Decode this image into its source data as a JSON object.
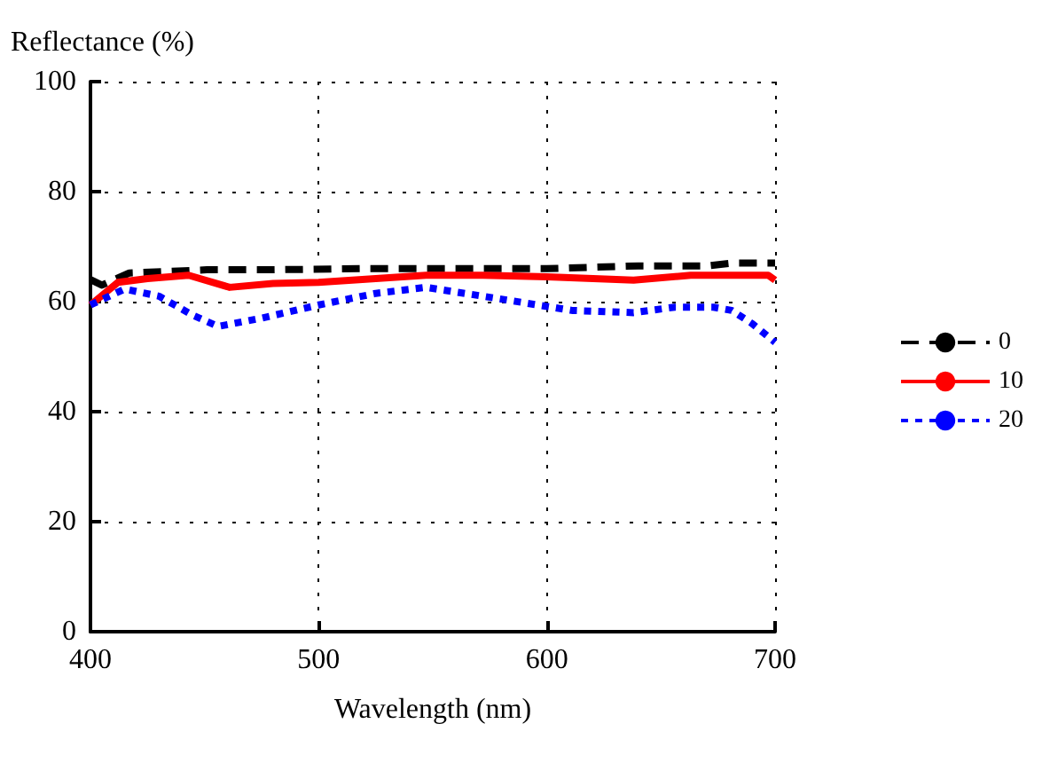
{
  "chart_data": {
    "type": "line",
    "xlabel": "Wavelength (nm)",
    "ylabel": "Reflectance (%)",
    "xlim": [
      400,
      700
    ],
    "xticks": [
      400,
      500,
      600,
      700
    ],
    "ylim": [
      0,
      100
    ],
    "yticks": [
      0,
      20,
      40,
      60,
      80,
      100
    ],
    "grid": true,
    "legend": "right",
    "marker": "none",
    "series": [
      {
        "name": "0",
        "color": "#000000",
        "line_style": "dashed",
        "x": [
          400,
          405,
          417,
          435,
          451,
          480,
          520,
          560,
          600,
          640,
          670,
          681,
          700
        ],
        "values": [
          64,
          63,
          65.2,
          65.5,
          65.8,
          65.8,
          66,
          66,
          66,
          66.5,
          66.5,
          67,
          67
        ]
      },
      {
        "name": "10",
        "color": "#ff0000",
        "line_style": "solid",
        "x": [
          400,
          412,
          425,
          443,
          461,
          480,
          500,
          525,
          547,
          572,
          600,
          638,
          663,
          697,
          700
        ],
        "values": [
          59.4,
          63.5,
          64.2,
          64.8,
          62.6,
          63.3,
          63.5,
          64.2,
          64.8,
          64.8,
          64.5,
          63.9,
          64.8,
          64.8,
          63.9
        ]
      },
      {
        "name": "20",
        "color": "#0000ff",
        "line_style": "dotted",
        "x": [
          400,
          415,
          430,
          445,
          456,
          475,
          500,
          525,
          547,
          578,
          611,
          638,
          656,
          673,
          681,
          690,
          700
        ],
        "values": [
          59.4,
          62.3,
          61,
          57.5,
          55.5,
          57,
          59.4,
          61.5,
          62.6,
          60.6,
          58.4,
          58,
          59,
          59,
          58.4,
          56,
          52.6
        ]
      }
    ]
  }
}
